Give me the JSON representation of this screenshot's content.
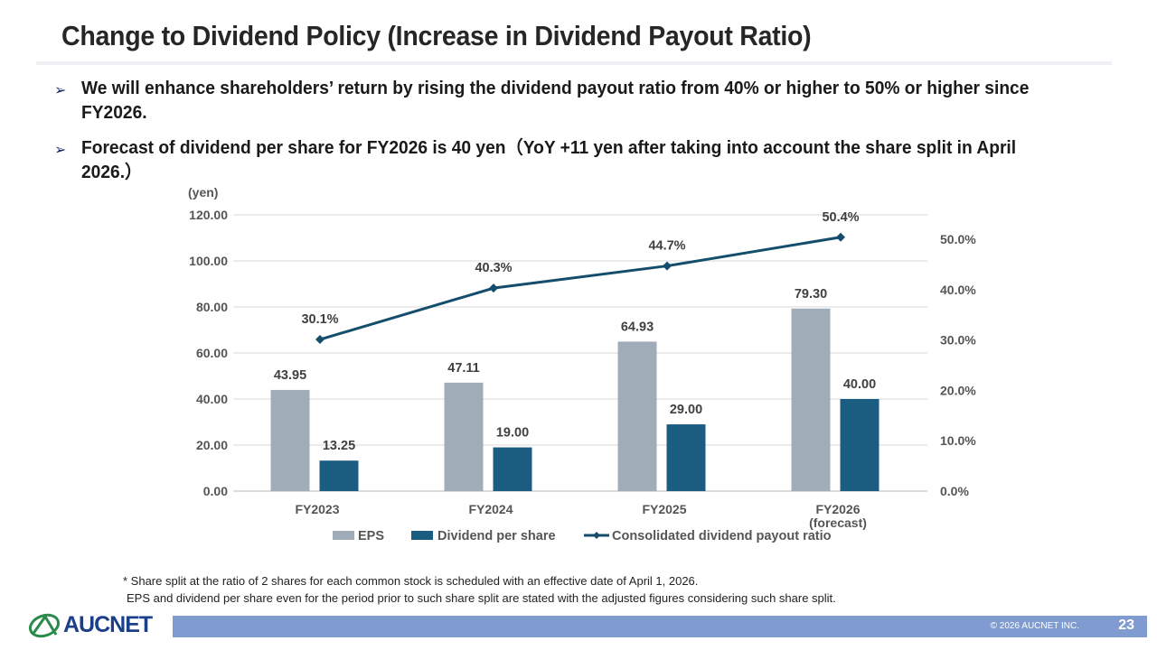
{
  "page": {
    "title": "Change to Dividend Policy (Increase in Dividend Payout Ratio)",
    "bullets": [
      "We will enhance shareholders’ return by rising the dividend payout ratio from 40% or higher to 50% or higher since FY2026.",
      "Forecast of dividend per share for FY2026 is 40 yen（YoY +11 yen after taking into account the share split in April 2026.）"
    ],
    "bullet_icon": "arrowhead-bullet-icon",
    "footnotes": [
      "* Share split at the ratio of 2 shares for each common stock is scheduled with an effective date of April 1, 2026.",
      "EPS and dividend per share even for the period prior to such share split are stated with the adjusted figures considering such share split."
    ],
    "logo_text": "AUCNET",
    "copyright": "© 2026 AUCNET INC.",
    "page_number": "23"
  },
  "chart_data": {
    "type": "bar",
    "title": "",
    "unit_label": "(yen)",
    "categories": [
      [
        "FY2023"
      ],
      [
        "FY2024"
      ],
      [
        "FY2025"
      ],
      [
        "FY2026",
        "(forecast)"
      ]
    ],
    "ylim": [
      0,
      120
    ],
    "y_ticks": [
      "0.00",
      "20.00",
      "40.00",
      "60.00",
      "80.00",
      "100.00",
      "120.00"
    ],
    "y2lim": [
      0,
      55
    ],
    "y2_ticks": [
      "0.0%",
      "10.0%",
      "20.0%",
      "30.0%",
      "40.0%",
      "50.0%"
    ],
    "grid": true,
    "legend_position": "bottom",
    "series": [
      {
        "name": "EPS",
        "type": "bar",
        "color": "#a0adb9",
        "values": [
          43.95,
          47.11,
          64.93,
          79.3
        ],
        "labels": [
          "43.95",
          "47.11",
          "64.93",
          "79.30"
        ]
      },
      {
        "name": "Dividend per share",
        "type": "bar",
        "color": "#1a5d80",
        "values": [
          13.25,
          19.0,
          29.0,
          40.0
        ],
        "labels": [
          "13.25",
          "19.00",
          "29.00",
          "40.00"
        ]
      },
      {
        "name": "Consolidated dividend payout ratio",
        "type": "line",
        "axis": "secondary",
        "color": "#144e6c",
        "values": [
          30.1,
          40.3,
          44.7,
          50.4
        ],
        "labels": [
          "30.1%",
          "40.3%",
          "44.7%",
          "50.4%"
        ]
      }
    ]
  }
}
